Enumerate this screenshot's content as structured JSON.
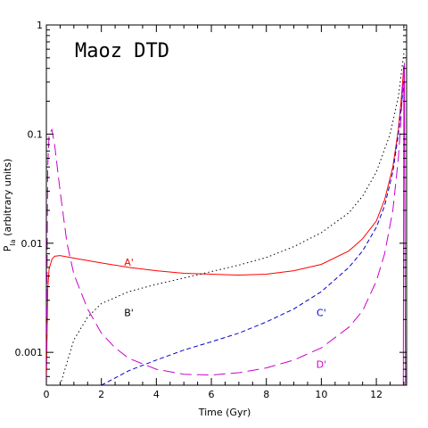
{
  "chart_data": {
    "type": "line",
    "title": "Maoz DTD",
    "xlabel": "Time (Gyr)",
    "ylabel": "P_Ia (arbitrary units)",
    "ylabel_main": "P",
    "ylabel_sub": "Ia",
    "ylabel_rest": " (arbitrary units)",
    "xlim": [
      0,
      13.1
    ],
    "ylim": [
      0.0005,
      1
    ],
    "yscale": "log",
    "x_ticks": [
      0,
      2,
      4,
      6,
      8,
      10,
      12
    ],
    "x_tick_labels": [
      "0",
      "2",
      "4",
      "6",
      "8",
      "10",
      "12"
    ],
    "y_ticks": [
      0.001,
      0.01,
      0.1,
      1
    ],
    "y_tick_labels": [
      "0.001",
      "0.01",
      "0.1",
      "1"
    ],
    "series": [
      {
        "name": "A'",
        "color": "#ff0000",
        "dash": "solid",
        "x": [
          0.0,
          0.05,
          0.1,
          0.2,
          0.3,
          0.5,
          1.0,
          2.0,
          3.0,
          4.0,
          5.0,
          6.0,
          7.0,
          8.0,
          9.0,
          10.0,
          11.0,
          11.5,
          12.0,
          12.3,
          12.6,
          12.8,
          12.9,
          13.0
        ],
        "y": [
          0.0005,
          0.0038,
          0.0058,
          0.0071,
          0.0076,
          0.0077,
          0.0073,
          0.0066,
          0.006,
          0.0056,
          0.0053,
          0.0052,
          0.0051,
          0.0052,
          0.0056,
          0.0064,
          0.0085,
          0.011,
          0.016,
          0.025,
          0.05,
          0.11,
          0.2,
          0.42
        ]
      },
      {
        "name": "B'",
        "color": "#000000",
        "dash": "dotted",
        "x": [
          0.5,
          1.0,
          1.5,
          2.0,
          3.0,
          4.0,
          5.0,
          6.0,
          7.0,
          8.0,
          9.0,
          10.0,
          11.0,
          11.5,
          12.0,
          12.5,
          12.8,
          13.0
        ],
        "y": [
          0.0005,
          0.0013,
          0.0021,
          0.0028,
          0.0036,
          0.0042,
          0.0048,
          0.0055,
          0.0063,
          0.0074,
          0.0093,
          0.0125,
          0.019,
          0.027,
          0.045,
          0.1,
          0.22,
          0.55
        ]
      },
      {
        "name": "C'",
        "color": "#0000cc",
        "dash": "dashed",
        "x": [
          2.0,
          3.0,
          4.0,
          5.0,
          6.0,
          7.0,
          8.0,
          9.0,
          10.0,
          11.0,
          11.5,
          12.0,
          12.3,
          12.6,
          12.8,
          13.0
        ],
        "y": [
          0.0005,
          0.00068,
          0.00085,
          0.00105,
          0.00125,
          0.0015,
          0.0019,
          0.0025,
          0.0036,
          0.006,
          0.0085,
          0.014,
          0.022,
          0.045,
          0.1,
          0.3
        ]
      },
      {
        "name": "D'",
        "color": "#cc00cc",
        "dash": "longdash",
        "x": [
          0.0,
          0.05,
          0.1,
          0.2,
          0.3,
          0.5,
          0.75,
          1.0,
          1.5,
          2.0,
          2.5,
          3.0,
          4.0,
          5.0,
          6.0,
          7.0,
          8.0,
          9.0,
          10.0,
          11.0,
          11.5,
          12.0,
          12.3,
          12.6,
          12.8,
          12.9,
          13.0
        ],
        "y": [
          0.0005,
          0.05,
          0.1,
          0.11,
          0.08,
          0.03,
          0.01,
          0.0052,
          0.0025,
          0.0015,
          0.0011,
          0.00088,
          0.0007,
          0.00063,
          0.00062,
          0.00065,
          0.00072,
          0.00085,
          0.0011,
          0.0017,
          0.0024,
          0.0045,
          0.008,
          0.02,
          0.06,
          0.14,
          0.45
        ]
      },
      {
        "name": "",
        "color": "#cc00cc",
        "dash": "solid",
        "x": [
          12.98,
          13.0,
          13.02,
          13.04,
          13.06
        ],
        "y": [
          0.0005,
          0.3,
          0.45,
          0.01,
          0.0005
        ]
      }
    ],
    "labels": [
      {
        "text": "A'",
        "x": 3.0,
        "y": 0.0062,
        "color": "#ff0000"
      },
      {
        "text": "B'",
        "x": 3.0,
        "y": 0.00215,
        "color": "#000000"
      },
      {
        "text": "C'",
        "x": 10.0,
        "y": 0.00215,
        "color": "#0000cc"
      },
      {
        "text": "D'",
        "x": 10.0,
        "y": 0.00072,
        "color": "#cc00cc"
      }
    ],
    "grid": false,
    "legend": "none"
  }
}
